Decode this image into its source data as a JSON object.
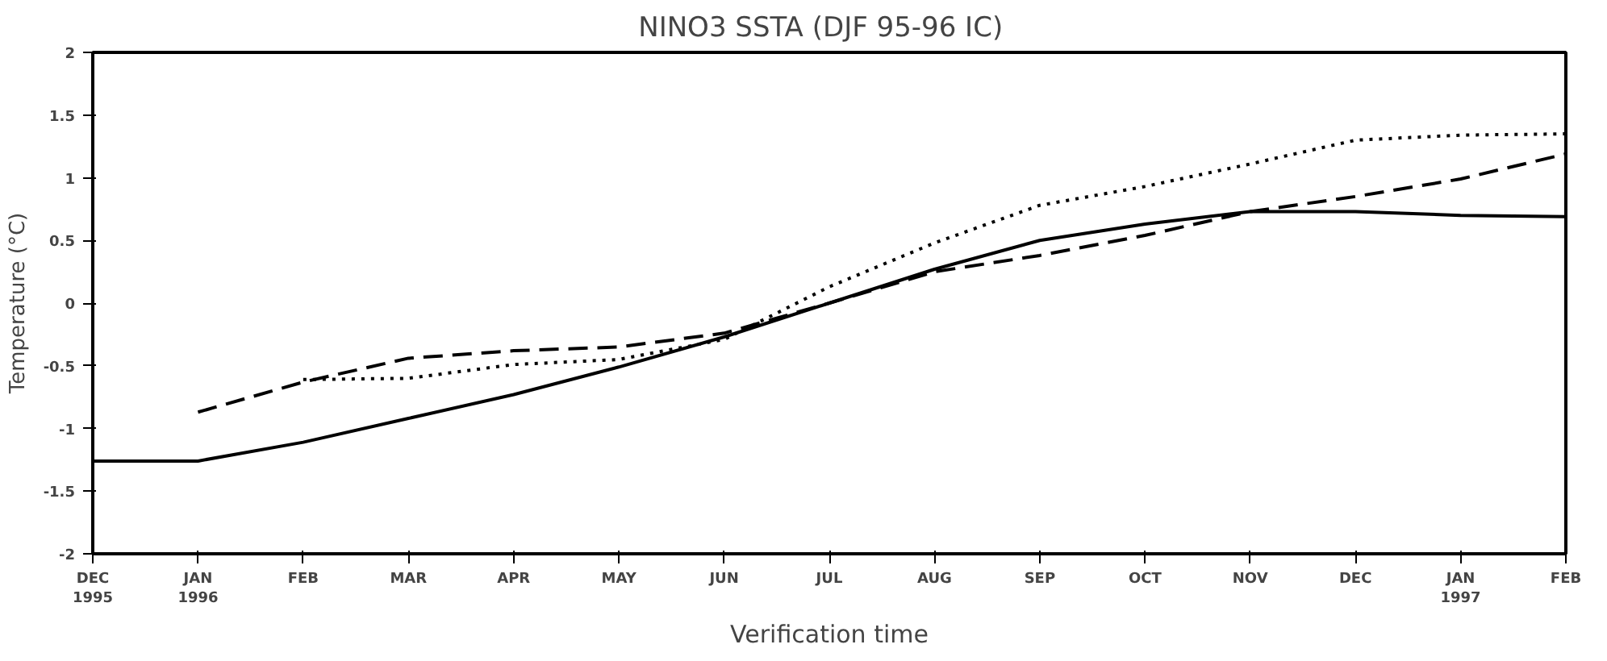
{
  "chart_data": {
    "type": "line",
    "title": "NINO3 SSTA   (DJF 95-96 IC)",
    "xlabel": "Verification time",
    "ylabel": "Temperature (°C)",
    "categories": [
      "DEC 1995",
      "JAN 1996",
      "FEB",
      "MAR",
      "APR",
      "MAY",
      "JUN",
      "JUL",
      "AUG",
      "SEP",
      "OCT",
      "NOV",
      "DEC",
      "JAN 1997",
      "FEB"
    ],
    "ylim": [
      -2,
      2
    ],
    "yticks": [
      -2,
      -1.5,
      -1,
      -0.5,
      0,
      0.5,
      1,
      1.5,
      2
    ],
    "series": [
      {
        "color": "#000000",
        "line_style": "solid",
        "values": [
          -1.26,
          -1.26,
          -1.11,
          -0.92,
          -0.73,
          -0.51,
          -0.27,
          0.0,
          0.27,
          0.5,
          0.63,
          0.73,
          0.73,
          0.7,
          0.69
        ]
      },
      {
        "color": "#000000",
        "line_style": "dashed",
        "values": [
          null,
          -0.87,
          -0.63,
          -0.44,
          -0.38,
          -0.35,
          -0.24,
          0.0,
          0.25,
          0.38,
          0.54,
          0.73,
          0.85,
          0.99,
          1.19
        ]
      },
      {
        "color": "#000000",
        "line_style": "dotted",
        "values": [
          null,
          null,
          -0.61,
          -0.6,
          -0.49,
          -0.45,
          -0.29,
          0.13,
          0.48,
          0.78,
          0.93,
          1.11,
          1.3,
          1.34,
          1.35
        ]
      }
    ]
  }
}
